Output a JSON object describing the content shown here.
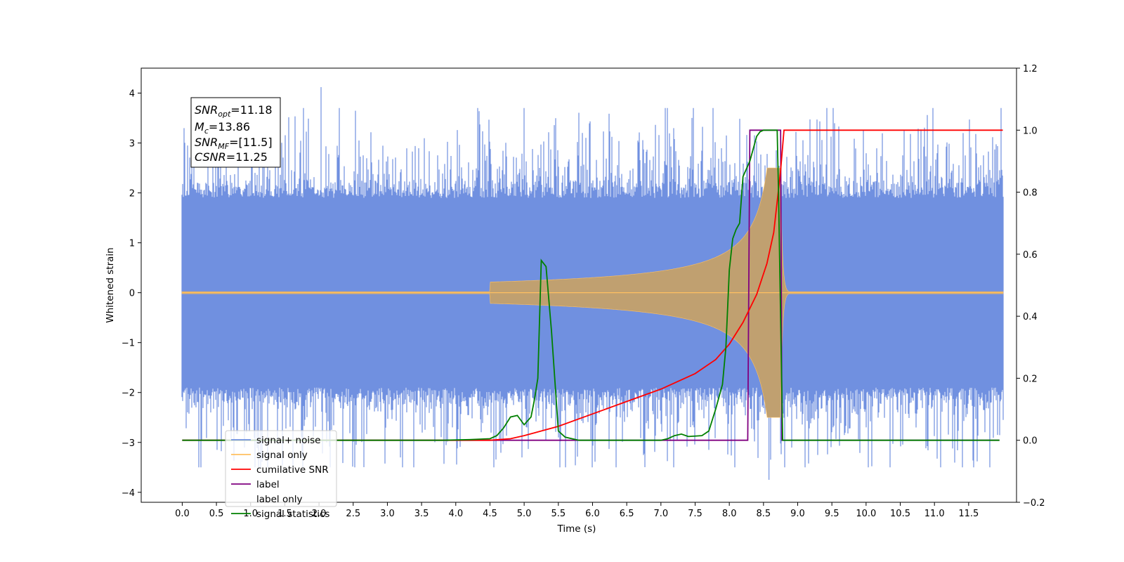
{
  "chart_data": {
    "type": "line",
    "xlabel": "Time (s)",
    "ylabel_left": "Whitened strain",
    "ylabel_right": "",
    "xlim": [
      -0.6,
      12.2
    ],
    "ylim_left": [
      -4.2,
      4.5
    ],
    "ylim_right": [
      -0.2,
      1.2
    ],
    "x_ticks": [
      "0.0",
      "0.5",
      "1.0",
      "1.5",
      "2.0",
      "2.5",
      "3.0",
      "3.5",
      "4.0",
      "4.5",
      "5.0",
      "5.5",
      "6.0",
      "6.5",
      "7.0",
      "7.5",
      "8.0",
      "8.5",
      "9.0",
      "9.5",
      "10.0",
      "10.5",
      "11.0",
      "11.5"
    ],
    "y_ticks_left": [
      "4",
      "3",
      "2",
      "1",
      "0",
      "−1",
      "−2",
      "−3",
      "−4"
    ],
    "y_ticks_right": [
      "1.2",
      "1.0",
      "0.8",
      "0.6",
      "0.4",
      "0.2",
      "0.0",
      "−0.2"
    ],
    "grid": false,
    "legend_position": "lower-left",
    "annotation": {
      "snr_opt": {
        "name": "SNR",
        "sub": "opt",
        "value": "=11.18"
      },
      "mc": {
        "name": "M",
        "sub": "c",
        "value": "=13.86"
      },
      "snr_mf": {
        "name": "SNR",
        "sub": "MF",
        "value": "=[11.5]"
      },
      "csnr": {
        "name": "CSNR",
        "sub": "",
        "value": "=11.25"
      }
    },
    "series": [
      {
        "name": "signal+ noise",
        "color": "#7090e0",
        "axis": "left",
        "description_values": {
          "t_start": 0.0,
          "t_end": 12.0,
          "typical_band": [
            -2.0,
            2.2
          ],
          "peak_max": 4.12,
          "peak_min": -3.75
        }
      },
      {
        "name": "signal only",
        "color": "#ffc060",
        "axis": "left",
        "chirp": {
          "t_start": 0.0,
          "t_merger": 8.75,
          "t_end": 12.0,
          "peak_amplitude": 2.5
        }
      },
      {
        "name": "cumilative SNR",
        "color": "#ff0000",
        "axis": "right",
        "x": [
          0.0,
          4.5,
          4.8,
          5.0,
          5.5,
          6.0,
          6.5,
          7.0,
          7.5,
          7.8,
          8.0,
          8.2,
          8.4,
          8.55,
          8.65,
          8.75,
          8.8,
          12.0
        ],
        "values": [
          0.0,
          0.0,
          0.005,
          0.015,
          0.045,
          0.085,
          0.125,
          0.165,
          0.215,
          0.26,
          0.31,
          0.38,
          0.47,
          0.57,
          0.67,
          0.87,
          1.0,
          1.0
        ]
      },
      {
        "name": "label",
        "color": "#800080",
        "axis": "right",
        "x": [
          0.0,
          8.27,
          8.3,
          8.75,
          8.77,
          11.95
        ],
        "values": [
          0.0,
          0.0,
          1.0,
          1.0,
          0.0,
          0.0
        ]
      },
      {
        "name": "label only",
        "color": "#ffffff",
        "axis": "right",
        "x": [],
        "values": []
      },
      {
        "name": "signal statistics",
        "color": "#008000",
        "axis": "right",
        "x": [
          0.0,
          3.8,
          4.2,
          4.5,
          4.6,
          4.7,
          4.8,
          4.9,
          5.0,
          5.1,
          5.15,
          5.2,
          5.25,
          5.32,
          5.4,
          5.5,
          5.6,
          5.8,
          7.0,
          7.1,
          7.2,
          7.3,
          7.4,
          7.6,
          7.7,
          7.8,
          7.9,
          7.95,
          8.0,
          8.05,
          8.1,
          8.15,
          8.2,
          8.3,
          8.4,
          8.45,
          8.5,
          8.7,
          8.72,
          8.78,
          8.82,
          8.9,
          11.95
        ],
        "values": [
          0.0,
          0.0,
          0.002,
          0.005,
          0.015,
          0.04,
          0.075,
          0.08,
          0.05,
          0.075,
          0.13,
          0.2,
          0.58,
          0.56,
          0.35,
          0.03,
          0.01,
          0.0,
          0.0,
          0.005,
          0.015,
          0.02,
          0.012,
          0.015,
          0.03,
          0.1,
          0.18,
          0.3,
          0.55,
          0.65,
          0.68,
          0.7,
          0.85,
          0.9,
          0.98,
          0.995,
          1.0,
          1.0,
          0.8,
          0.0,
          0.0,
          0.0,
          0.0
        ]
      }
    ]
  }
}
